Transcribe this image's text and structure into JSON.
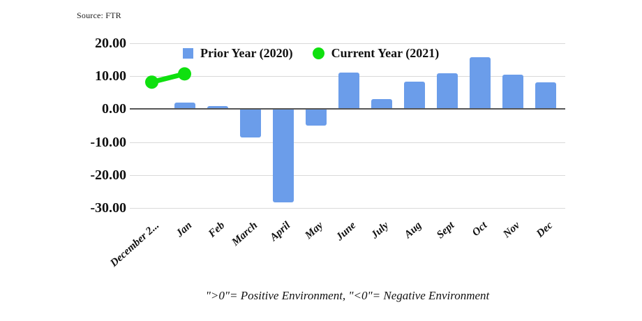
{
  "source_label": "Source: FTR",
  "legend": {
    "items": [
      {
        "label": "Prior Year (2020)",
        "color": "#6b9dea",
        "shape": "square"
      },
      {
        "label": "Current Year (2021)",
        "color": "#0fe00f",
        "shape": "circle"
      }
    ]
  },
  "chart_data": {
    "type": "combo",
    "title": "",
    "categories": [
      "December 2...",
      "Jan",
      "Feb",
      "March",
      "April",
      "May",
      "June",
      "July",
      "Aug",
      "Sept",
      "Oct",
      "Nov",
      "Dec"
    ],
    "series": [
      {
        "name": "Prior Year (2020)",
        "type": "bar",
        "color": "#6b9dea",
        "values": [
          null,
          2,
          1,
          -8.5,
          -28.3,
          -5,
          11.2,
          3,
          8.4,
          10.8,
          15.8,
          10.4,
          8.2
        ]
      },
      {
        "name": "Current Year (2021)",
        "type": "line",
        "color": "#0fe00f",
        "values": [
          8.2,
          10.7,
          null,
          null,
          null,
          null,
          null,
          null,
          null,
          null,
          null,
          null,
          null
        ]
      }
    ],
    "ylim": [
      -30,
      20
    ],
    "yticks": [
      "20.00",
      "10.00",
      "0.00",
      "-10.00",
      "-20.00",
      "-30.00"
    ],
    "grid": true,
    "legend_position": "top",
    "footnote": "\">0\"= Positive Environment, \"<0\"= Negative Environment"
  },
  "colors": {
    "bar": "#6b9dea",
    "point": "#0fe00f",
    "gridline": "#d9d9d9",
    "zero_axis": "#565656",
    "text": "#111111"
  }
}
